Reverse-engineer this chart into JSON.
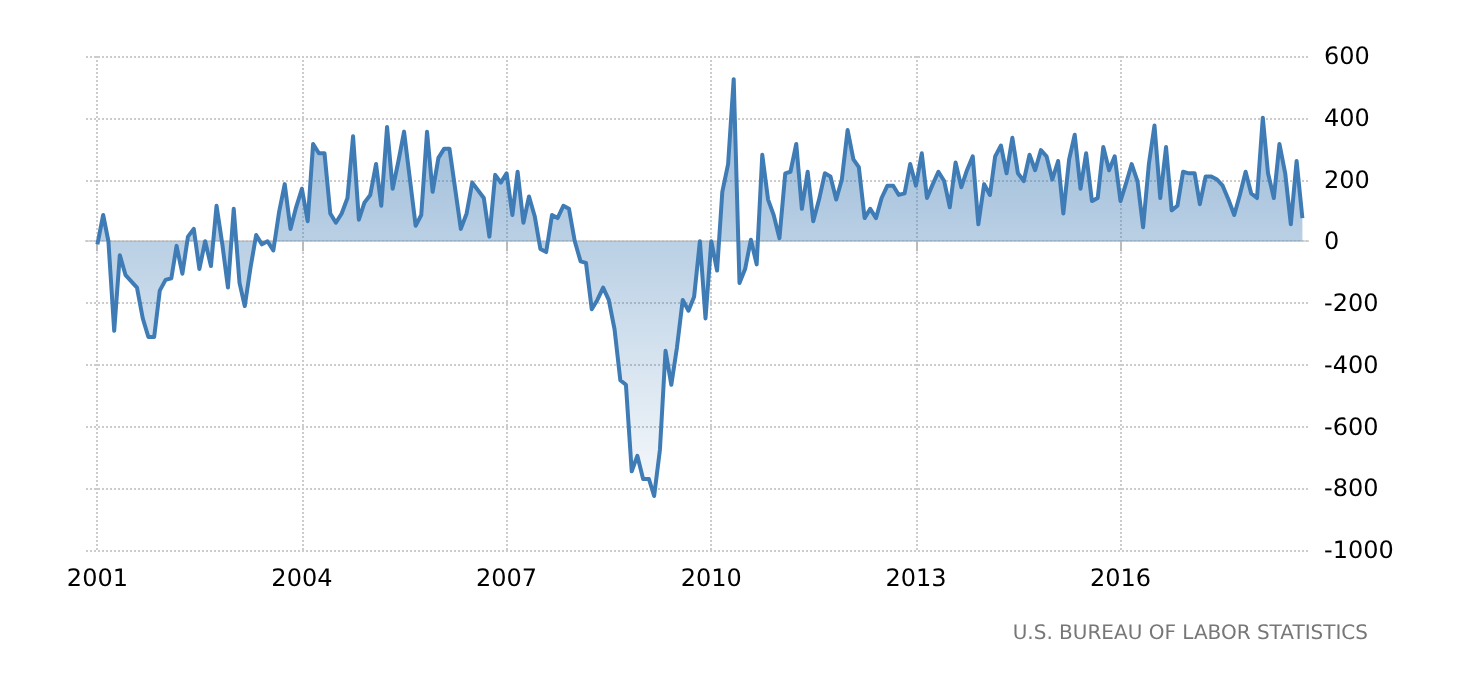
{
  "chart_data": {
    "type": "area",
    "annotations": [
      "U.S. BUREAU OF LABOR STATISTICS"
    ],
    "x": [
      "2001-01",
      "2001-02",
      "2001-03",
      "2001-04",
      "2001-05",
      "2001-06",
      "2001-08",
      "2001-09",
      "2001-10",
      "2001-11",
      "2001-12",
      "2002-01",
      "2002-02",
      "2002-03",
      "2002-04",
      "2002-05",
      "2002-06",
      "2002-07",
      "2002-08",
      "2002-09",
      "2002-10",
      "2002-11",
      "2002-12",
      "2003-01",
      "2003-02",
      "2003-03",
      "2003-04",
      "2003-05",
      "2003-06",
      "2003-07",
      "2003-08",
      "2003-09",
      "2003-10",
      "2003-11",
      "2003-12",
      "2004-01",
      "2004-02",
      "2004-03",
      "2004-04",
      "2004-05",
      "2004-06",
      "2004-07",
      "2004-08",
      "2004-09",
      "2004-10",
      "2004-11",
      "2004-12",
      "2005-01",
      "2005-02",
      "2005-03",
      "2005-04",
      "2005-05",
      "2005-06",
      "2005-07",
      "2005-09",
      "2005-10",
      "2005-11",
      "2005-12",
      "2006-01",
      "2006-02",
      "2006-03",
      "2006-05",
      "2006-06",
      "2006-07",
      "2006-09",
      "2006-10",
      "2006-11",
      "2006-12",
      "2007-01",
      "2007-02",
      "2007-03",
      "2007-04",
      "2007-05",
      "2007-06",
      "2007-07",
      "2007-08",
      "2007-09",
      "2007-10",
      "2007-11",
      "2007-12",
      "2008-01",
      "2008-02",
      "2008-03",
      "2008-04",
      "2008-05",
      "2008-06",
      "2008-07",
      "2008-08",
      "2008-09",
      "2008-10",
      "2008-11",
      "2008-12",
      "2009-01",
      "2009-02",
      "2009-03",
      "2009-04",
      "2009-05",
      "2009-06",
      "2009-07",
      "2009-08",
      "2009-09",
      "2009-10",
      "2009-11",
      "2009-12",
      "2010-01",
      "2010-02",
      "2010-03",
      "2010-04",
      "2010-05",
      "2010-06",
      "2010-07",
      "2010-08",
      "2010-09",
      "2010-10",
      "2010-11",
      "2010-12",
      "2011-01",
      "2011-02",
      "2011-03",
      "2011-04",
      "2011-05",
      "2011-06",
      "2011-07",
      "2011-08",
      "2011-09",
      "2011-10",
      "2011-11",
      "2011-12",
      "2012-01",
      "2012-02",
      "2012-03",
      "2012-04",
      "2012-05",
      "2012-06",
      "2012-07",
      "2012-08",
      "2012-09",
      "2012-10",
      "2012-11",
      "2012-12",
      "2013-01",
      "2013-02",
      "2013-03",
      "2013-04",
      "2013-05",
      "2013-06",
      "2013-07",
      "2013-08",
      "2013-09",
      "2013-10",
      "2013-11",
      "2013-12",
      "2014-01",
      "2014-02",
      "2014-03",
      "2014-04",
      "2014-05",
      "2014-06",
      "2014-07",
      "2014-08",
      "2014-09",
      "2014-10",
      "2014-11",
      "2014-12",
      "2015-01",
      "2015-02",
      "2015-03",
      "2015-04",
      "2015-05",
      "2015-06",
      "2015-07",
      "2015-08",
      "2015-09",
      "2015-10",
      "2015-11",
      "2015-12",
      "2016-01",
      "2016-02",
      "2016-03",
      "2016-04",
      "2016-05",
      "2016-06",
      "2016-07",
      "2016-08",
      "2016-09",
      "2016-10",
      "2016-11",
      "2016-12",
      "2017-01",
      "2017-02",
      "2017-03",
      "2017-04",
      "2017-05",
      "2017-06",
      "2017-07",
      "2017-08",
      "2017-09",
      "2017-10",
      "2017-11",
      "2017-12",
      "2018-01",
      "2018-02",
      "2018-03",
      "2018-04",
      "2018-05",
      "2018-06",
      "2018-07",
      "2018-08",
      "2018-09"
    ],
    "series": [
      {
        "color": "#3f7cb5",
        "values": [
          -10,
          85,
          0,
          -290,
          -45,
          -110,
          -150,
          -250,
          -310,
          -310,
          -160,
          -125,
          -120,
          -15,
          -105,
          15,
          40,
          -90,
          0,
          -80,
          115,
          -10,
          -150,
          105,
          -135,
          -210,
          -85,
          20,
          -10,
          0,
          -30,
          95,
          185,
          40,
          110,
          170,
          65,
          315,
          285,
          285,
          90,
          60,
          90,
          140,
          340,
          70,
          125,
          150,
          250,
          115,
          370,
          170,
          260,
          355,
          50,
          85,
          355,
          160,
          270,
          300,
          300,
          40,
          90,
          190,
          140,
          15,
          215,
          190,
          220,
          85,
          225,
          60,
          145,
          80,
          -25,
          -35,
          85,
          75,
          115,
          105,
          0,
          -65,
          -70,
          -220,
          -190,
          -150,
          -190,
          -285,
          -450,
          -465,
          -745,
          -695,
          -770,
          -770,
          -825,
          -675,
          -355,
          -465,
          -345,
          -190,
          -225,
          -180,
          0,
          -250,
          0,
          -95,
          160,
          250,
          525,
          -135,
          -90,
          5,
          -75,
          280,
          135,
          85,
          10,
          220,
          225,
          315,
          105,
          225,
          65,
          135,
          220,
          210,
          135,
          200,
          360,
          265,
          240,
          75,
          105,
          75,
          140,
          180,
          180,
          150,
          155,
          250,
          180,
          285,
          140,
          185,
          225,
          195,
          110,
          255,
          175,
          230,
          275,
          55,
          185,
          150,
          275,
          310,
          220,
          335,
          220,
          195,
          280,
          230,
          295,
          275,
          200,
          260,
          90,
          265,
          345,
          170,
          285,
          130,
          140,
          305,
          230,
          275,
          130,
          190,
          250,
          195,
          45,
          250,
          375,
          140,
          305,
          100,
          115,
          225,
          220,
          220,
          120,
          210,
          210,
          200,
          180,
          135,
          85,
          150,
          225,
          155,
          140,
          400,
          220,
          140,
          315,
          220,
          55,
          260,
          75
        ]
      }
    ],
    "xlim": [
      "2000-11",
      "2018-10"
    ],
    "xticks": [
      "2001",
      "2004",
      "2007",
      "2010",
      "2013",
      "2016"
    ],
    "ylim": [
      -1000,
      600
    ],
    "yticks": [
      -1000,
      -800,
      -600,
      -400,
      -200,
      0,
      200,
      400,
      600
    ],
    "grid": true
  }
}
